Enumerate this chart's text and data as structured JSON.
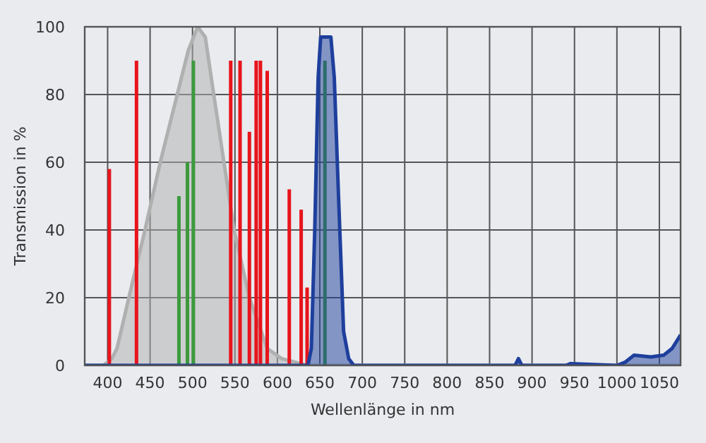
{
  "chart_data": {
    "type": "area",
    "xlabel": "Wellenlänge in nm",
    "ylabel": "Transmission in %",
    "xlim": [
      373,
      1075
    ],
    "ylim": [
      0,
      100
    ],
    "xticks": [
      400,
      450,
      500,
      550,
      600,
      650,
      700,
      750,
      800,
      850,
      900,
      950,
      1000,
      1050
    ],
    "yticks": [
      0,
      20,
      40,
      60,
      80,
      100
    ],
    "grid": true,
    "series": [
      {
        "color": "#b0b0b0",
        "x": [
          373,
          395,
          405,
          411,
          425,
          444,
          462,
          482,
          495,
          506,
          515,
          525,
          537,
          549,
          567,
          588,
          605,
          620,
          635,
          1075
        ],
        "values": [
          0,
          0,
          2,
          5,
          20,
          40,
          60,
          80,
          93,
          100,
          97,
          80,
          60,
          40,
          20,
          5,
          2,
          1,
          0,
          0
        ]
      },
      {
        "type": "bar",
        "color": "#e8141c",
        "x": [
          402,
          434,
          545,
          556,
          567,
          575,
          580,
          588,
          614,
          628,
          635
        ],
        "values": [
          58,
          90,
          90,
          90,
          69,
          90,
          90,
          87,
          52,
          46,
          23
        ]
      },
      {
        "type": "bar",
        "color": "#3c9a3c",
        "x": [
          484,
          494,
          501,
          656
        ],
        "values": [
          50,
          60,
          90,
          90
        ]
      },
      {
        "color": "#1e3f9c",
        "x": [
          373,
          636,
          640,
          644,
          648,
          651,
          663,
          667,
          672,
          678,
          684,
          690,
          880,
          884,
          888,
          940,
          945,
          1000,
          1010,
          1020,
          1040,
          1055,
          1065,
          1075
        ],
        "values": [
          0,
          0,
          5,
          40,
          85,
          97,
          97,
          85,
          50,
          10,
          2,
          0,
          0,
          2,
          0,
          0,
          0.5,
          0,
          1,
          3,
          2.5,
          3,
          5,
          9
        ]
      }
    ]
  }
}
